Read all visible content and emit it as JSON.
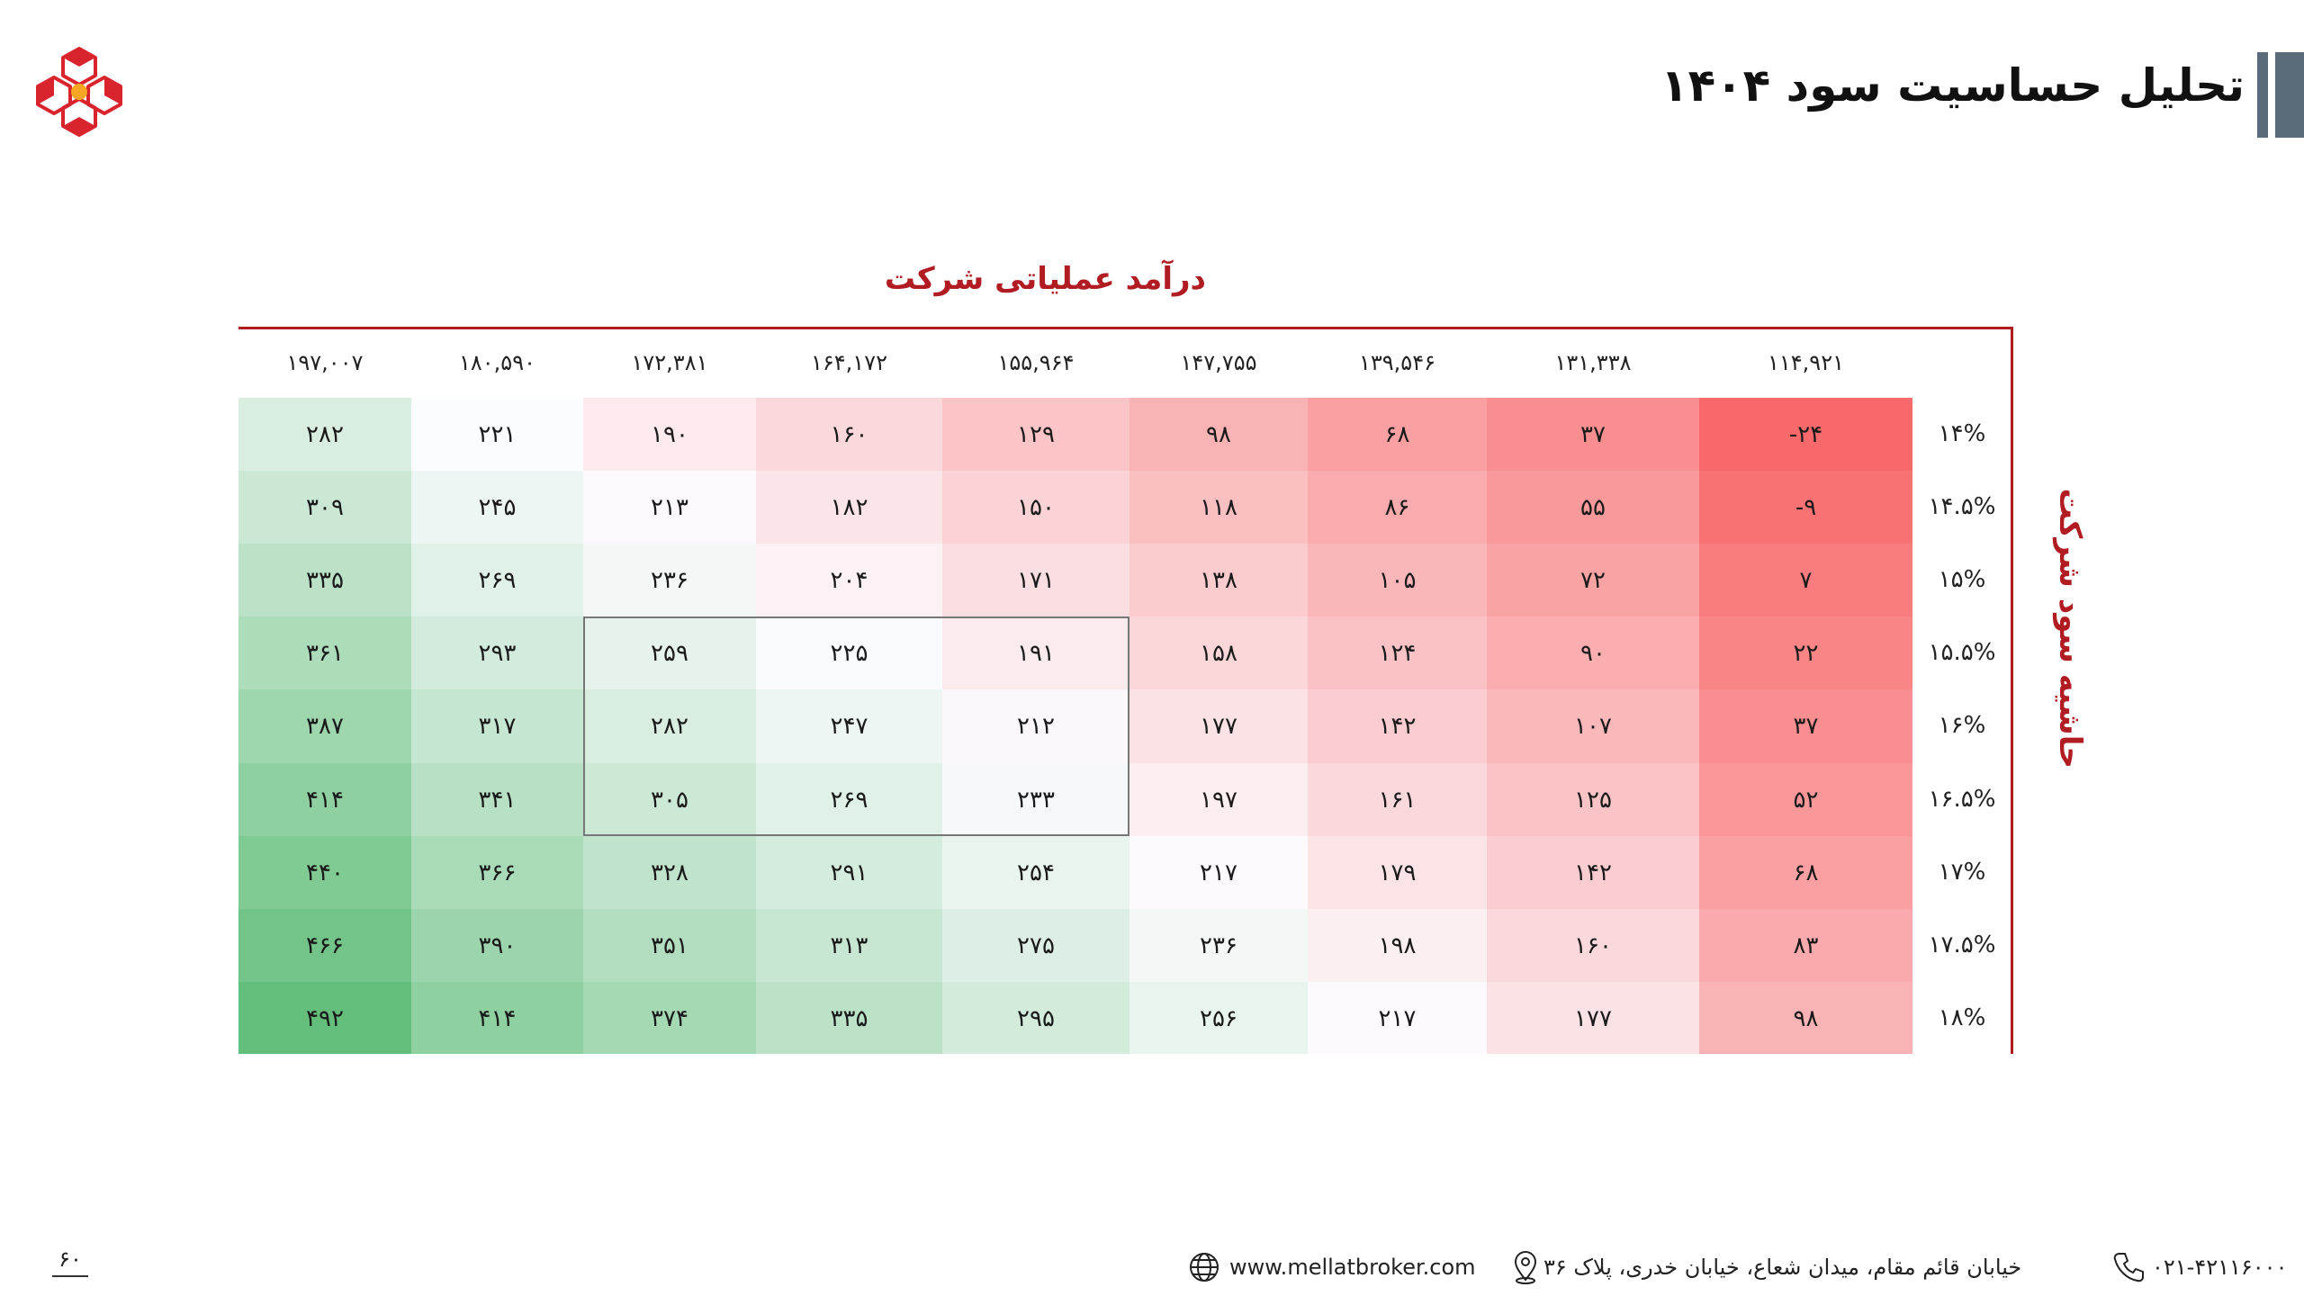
{
  "title": "تحلیل حساسیت سود ۱۴۰۴",
  "axis": {
    "columns_label": "درآمد عملیاتی شرکت",
    "rows_label": "حاشیه سود شرکت"
  },
  "table": {
    "columns": [
      "۱۹۷,۰۰۷",
      "۱۸۰,۵۹۰",
      "۱۷۲,۳۸۱",
      "۱۶۴,۱۷۲",
      "۱۵۵,۹۶۴",
      "۱۴۷,۷۵۵",
      "۱۳۹,۵۴۶",
      "۱۳۱,۳۳۸",
      "۱۱۴,۹۲۱"
    ],
    "rows": [
      "۱۴%",
      "۱۴.۵%",
      "۱۵%",
      "۱۵.۵%",
      "۱۶%",
      "۱۶.۵%",
      "۱۷%",
      "۱۷.۵%",
      "۱۸%"
    ],
    "cells": [
      [
        "۲۸۲",
        "۲۲۱",
        "۱۹۰",
        "۱۶۰",
        "۱۲۹",
        "۹۸",
        "۶۸",
        "۳۷",
        "-۲۴"
      ],
      [
        "۳۰۹",
        "۲۴۵",
        "۲۱۳",
        "۱۸۲",
        "۱۵۰",
        "۱۱۸",
        "۸۶",
        "۵۵",
        "-۹"
      ],
      [
        "۳۳۵",
        "۲۶۹",
        "۲۳۶",
        "۲۰۴",
        "۱۷۱",
        "۱۳۸",
        "۱۰۵",
        "۷۲",
        "۷"
      ],
      [
        "۳۶۱",
        "۲۹۳",
        "۲۵۹",
        "۲۲۵",
        "۱۹۱",
        "۱۵۸",
        "۱۲۴",
        "۹۰",
        "۲۲"
      ],
      [
        "۳۸۷",
        "۳۱۷",
        "۲۸۲",
        "۲۴۷",
        "۲۱۲",
        "۱۷۷",
        "۱۴۲",
        "۱۰۷",
        "۳۷"
      ],
      [
        "۴۱۴",
        "۳۴۱",
        "۳۰۵",
        "۲۶۹",
        "۲۳۳",
        "۱۹۷",
        "۱۶۱",
        "۱۲۵",
        "۵۲"
      ],
      [
        "۴۴۰",
        "۳۶۶",
        "۳۲۸",
        "۲۹۱",
        "۲۵۴",
        "۲۱۷",
        "۱۷۹",
        "۱۴۲",
        "۶۸"
      ],
      [
        "۴۶۶",
        "۳۹۰",
        "۳۵۱",
        "۳۱۳",
        "۲۷۵",
        "۲۳۶",
        "۱۹۸",
        "۱۶۰",
        "۸۳"
      ],
      [
        "۴۹۲",
        "۴۱۴",
        "۳۷۴",
        "۳۳۵",
        "۲۹۵",
        "۲۵۶",
        "۲۱۷",
        "۱۷۷",
        "۹۸"
      ]
    ],
    "cell_values": [
      [
        282,
        221,
        190,
        160,
        129,
        98,
        68,
        37,
        -24
      ],
      [
        309,
        245,
        213,
        182,
        150,
        118,
        86,
        55,
        -9
      ],
      [
        335,
        269,
        236,
        204,
        171,
        138,
        105,
        72,
        7
      ],
      [
        361,
        293,
        259,
        225,
        191,
        158,
        124,
        90,
        22
      ],
      [
        387,
        317,
        282,
        247,
        212,
        177,
        142,
        107,
        37
      ],
      [
        414,
        341,
        305,
        269,
        233,
        197,
        161,
        125,
        52
      ],
      [
        440,
        366,
        328,
        291,
        254,
        217,
        179,
        142,
        68
      ],
      [
        466,
        390,
        351,
        313,
        275,
        236,
        198,
        160,
        83
      ],
      [
        492,
        414,
        374,
        335,
        295,
        256,
        217,
        177,
        98
      ]
    ],
    "color_scale": {
      "low": "#f8696b",
      "mid": "#fcfcff",
      "high": "#63be7b",
      "mid_value": 220
    }
  },
  "footer": {
    "page_number": "۶۰",
    "website": "www.mellatbroker.com",
    "address": "خیابان قائم مقام، میدان شعاع، خیابان خدری، پلاک ۳۶",
    "phone": "۰۲۱-۴۲۱۱۶۰۰۰",
    "icons": {
      "web": "globe-icon",
      "address": "location-pin-icon",
      "phone": "phone-icon"
    }
  },
  "colors": {
    "accent": "#b01c22",
    "bar": "#5c6b7a",
    "logo_red": "#d9232d",
    "logo_orange": "#f5a623"
  }
}
